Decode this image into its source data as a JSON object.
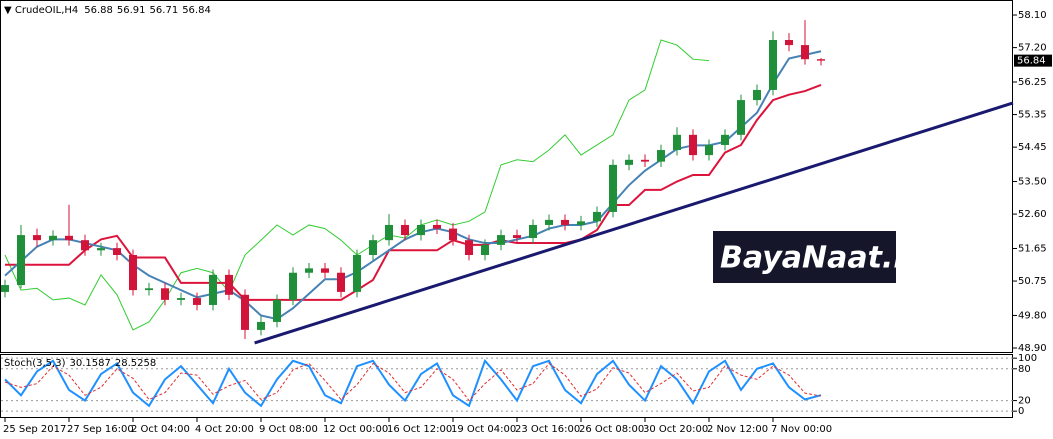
{
  "watermark": "BayaNaat.net",
  "chart_data": [
    {
      "type": "candlestick",
      "symbol": "CrudeOIL,H4",
      "header_values": [
        56.88,
        56.91,
        56.71,
        56.84
      ],
      "categories": [
        "25 Sep 2017",
        null,
        null,
        null,
        "27 Sep 16:00",
        null,
        null,
        null,
        "2 Oct 04:00",
        null,
        null,
        null,
        "4 Oct 20:00",
        null,
        null,
        null,
        "9 Oct 08:00",
        null,
        null,
        null,
        "12 Oct 00:00",
        null,
        null,
        null,
        "16 Oct 12:00",
        null,
        null,
        null,
        "19 Oct 04:00",
        null,
        null,
        null,
        "23 Oct 16:00",
        null,
        null,
        null,
        "26 Oct 08:00",
        null,
        null,
        null,
        "30 Oct 20:00",
        null,
        null,
        null,
        "2 Nov 12:00",
        null,
        null,
        null,
        "7 Nov 00:00",
        null,
        null,
        null
      ],
      "open": [
        50.45,
        50.64,
        52.02,
        51.88,
        52.0,
        51.88,
        51.6,
        51.66,
        51.47,
        50.5,
        50.55,
        50.23,
        50.28,
        50.09,
        50.92,
        50.37,
        49.4,
        49.62,
        50.23,
        50.98,
        51.1,
        50.98,
        50.45,
        51.47,
        51.88,
        52.3,
        52.02,
        52.3,
        52.2,
        51.88,
        51.47,
        51.75,
        52.02,
        51.94,
        52.3,
        52.44,
        52.3,
        52.4,
        52.66,
        53.96,
        54.1,
        54.05,
        54.37,
        54.79,
        54.23,
        54.51,
        54.79,
        55.75,
        56.03,
        57.41,
        57.27,
        56.88
      ],
      "high": [
        50.79,
        52.3,
        52.2,
        52.15,
        52.86,
        52.03,
        51.81,
        51.81,
        51.62,
        50.7,
        50.7,
        50.43,
        50.43,
        51.07,
        51.07,
        50.52,
        49.77,
        50.38,
        51.13,
        51.25,
        51.25,
        51.13,
        51.62,
        52.03,
        52.6,
        52.45,
        52.45,
        52.45,
        52.35,
        52.03,
        51.9,
        52.17,
        52.17,
        52.45,
        52.59,
        52.59,
        52.55,
        52.81,
        54.11,
        54.25,
        54.25,
        54.52,
        55.0,
        54.94,
        54.66,
        54.94,
        55.9,
        56.18,
        57.65,
        57.6,
        57.96,
        56.91
      ],
      "low": [
        50.3,
        50.55,
        51.7,
        51.73,
        51.73,
        51.45,
        51.45,
        51.32,
        50.35,
        50.35,
        50.08,
        50.08,
        49.94,
        49.94,
        50.22,
        49.15,
        49.25,
        49.47,
        50.08,
        50.83,
        50.83,
        50.3,
        50.3,
        51.32,
        51.73,
        51.87,
        51.87,
        52.05,
        51.73,
        51.32,
        51.32,
        51.6,
        51.79,
        51.79,
        52.15,
        52.15,
        52.15,
        52.25,
        52.51,
        53.81,
        53.9,
        53.9,
        54.22,
        54.08,
        54.08,
        54.36,
        54.64,
        55.6,
        55.88,
        57.1,
        56.73,
        56.71
      ],
      "close": [
        50.64,
        52.02,
        51.88,
        52.0,
        51.88,
        51.6,
        51.66,
        51.47,
        50.5,
        50.55,
        50.23,
        50.28,
        50.09,
        50.92,
        50.37,
        49.4,
        49.62,
        50.23,
        50.98,
        51.1,
        50.98,
        50.45,
        51.47,
        51.88,
        52.3,
        52.02,
        52.3,
        52.2,
        51.88,
        51.47,
        51.75,
        52.02,
        51.94,
        52.3,
        52.44,
        52.3,
        52.4,
        52.66,
        53.96,
        54.1,
        54.05,
        54.37,
        54.79,
        54.23,
        54.51,
        54.79,
        55.75,
        56.03,
        57.41,
        57.27,
        56.88,
        56.84
      ],
      "up_color": "#1f8f3a",
      "down_color": "#d2143a",
      "lines": [
        {
          "color": "#32cd32",
          "width": 1,
          "values": [
            51.47,
            50.5,
            50.55,
            50.23,
            50.28,
            50.09,
            50.92,
            50.37,
            49.4,
            49.62,
            50.23,
            50.98,
            51.1,
            50.98,
            50.45,
            51.47,
            51.88,
            52.3,
            52.02,
            52.3,
            52.2,
            51.88,
            51.47,
            51.75,
            52.02,
            51.94,
            52.3,
            52.44,
            52.3,
            52.4,
            52.66,
            53.96,
            54.1,
            54.05,
            54.37,
            54.79,
            54.23,
            54.51,
            54.79,
            55.75,
            56.03,
            57.41,
            57.27,
            56.88,
            56.84,
            null,
            null,
            null,
            null,
            null,
            null,
            null
          ]
        },
        {
          "color": "#dc143c",
          "width": 2,
          "values": [
            51.2,
            51.2,
            51.2,
            51.2,
            51.2,
            51.6,
            51.9,
            52.0,
            51.4,
            51.4,
            51.4,
            50.7,
            50.7,
            50.7,
            50.7,
            50.23,
            50.23,
            50.23,
            50.23,
            50.23,
            50.23,
            50.23,
            50.5,
            50.78,
            51.6,
            51.6,
            51.6,
            51.6,
            51.88,
            51.75,
            51.75,
            51.88,
            51.8,
            51.8,
            51.8,
            51.8,
            51.9,
            52.16,
            52.85,
            52.85,
            53.27,
            53.27,
            53.5,
            53.68,
            53.68,
            54.3,
            54.51,
            55.2,
            55.75,
            55.9,
            56.0,
            56.17
          ]
        },
        {
          "color": "#4682b4",
          "width": 2,
          "values": [
            50.9,
            51.3,
            51.7,
            51.9,
            51.9,
            51.8,
            51.7,
            51.6,
            51.2,
            50.9,
            50.7,
            50.5,
            50.3,
            50.4,
            50.5,
            50.2,
            49.8,
            49.7,
            50.0,
            50.4,
            50.8,
            50.8,
            51.0,
            51.3,
            51.6,
            51.9,
            52.1,
            52.2,
            52.1,
            51.9,
            51.8,
            51.8,
            51.9,
            52.0,
            52.2,
            52.3,
            52.3,
            52.4,
            52.9,
            53.4,
            53.8,
            54.1,
            54.4,
            54.5,
            54.5,
            54.6,
            55.0,
            55.4,
            56.2,
            56.9,
            57.0,
            57.1
          ]
        }
      ],
      "trendline": {
        "color": "#191970",
        "x": [
          15.6,
          63
        ],
        "values": [
          49.04,
          55.67
        ]
      },
      "last_price": 56.84,
      "ylim": [
        48.79,
        58.46
      ],
      "yticks": [
        {
          "value": 48.9,
          "label": "48.90"
        },
        {
          "value": 49.8,
          "label": "49.80"
        },
        50.75,
        51.65,
        {
          "value": 52.6,
          "label": "52.60"
        },
        {
          "value": 53.5,
          "label": "53.50"
        },
        54.45,
        55.35,
        56.25,
        {
          "value": 57.2,
          "label": "57.20"
        },
        {
          "value": 58.1,
          "label": "58.10"
        }
      ]
    },
    {
      "type": "line",
      "title": "Stoch(3,5,3)",
      "header_values": [
        30.1587,
        28.5258
      ],
      "series": [
        {
          "color": "#1e90ff",
          "width": 2,
          "dashed": false,
          "values": [
            60,
            30,
            75,
            95,
            40,
            20,
            70,
            90,
            35,
            10,
            60,
            85,
            50,
            15,
            80,
            35,
            10,
            60,
            95,
            85,
            30,
            15,
            85,
            95,
            50,
            20,
            70,
            90,
            30,
            10,
            95,
            60,
            20,
            85,
            95,
            40,
            15,
            70,
            95,
            50,
            20,
            85,
            60,
            15,
            75,
            95,
            40,
            80,
            90,
            45,
            22,
            30.16
          ]
        },
        {
          "color": "#e03030",
          "width": 1,
          "dashed": true,
          "values": [
            55,
            45,
            52,
            85,
            68,
            30,
            45,
            80,
            62,
            22,
            35,
            72,
            68,
            32,
            48,
            58,
            22,
            35,
            78,
            90,
            58,
            22,
            50,
            90,
            72,
            35,
            45,
            80,
            60,
            20,
            52,
            78,
            40,
            52,
            90,
            68,
            28,
            42,
            82,
            72,
            35,
            52,
            72,
            38,
            45,
            85,
            68,
            60,
            85,
            68,
            34,
            28.53
          ]
        }
      ],
      "ylim": [
        -11,
        106
      ],
      "yticks": [
        0,
        20,
        80,
        100
      ]
    }
  ]
}
